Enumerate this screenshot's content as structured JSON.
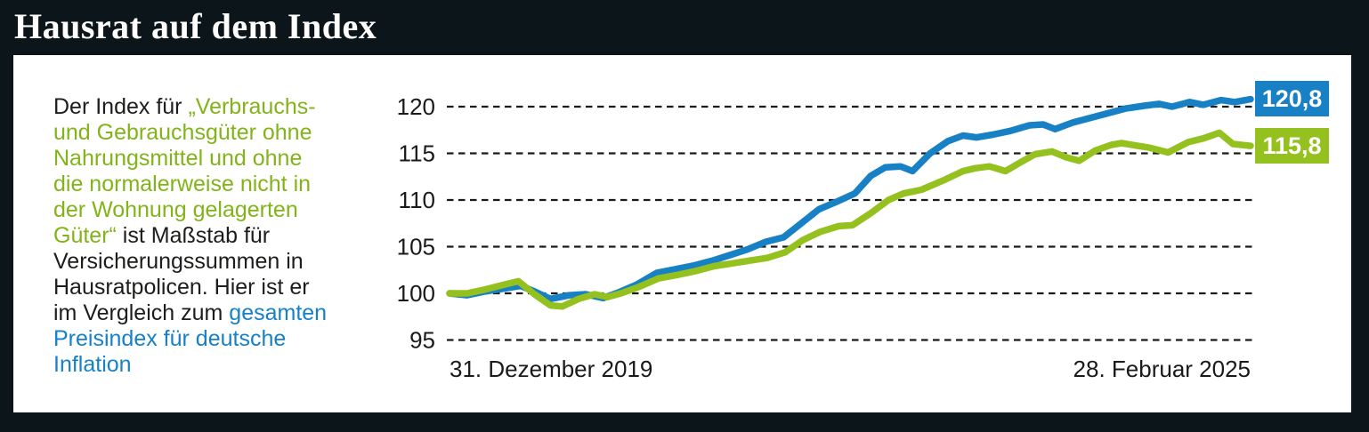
{
  "header": {
    "title": "Hausrat auf dem Index"
  },
  "colors": {
    "k": "#1d1d1b",
    "g": "#82b41a",
    "b": "#1681c8",
    "background_dark": "#0c161a",
    "panel": "#ffffff",
    "grid": "#1a1a1a"
  },
  "description": {
    "lines": [
      [
        {
          "t": "Der Index für ",
          "c": "k"
        },
        {
          "t": "„Verbrauchs-",
          "c": "g"
        }
      ],
      [
        {
          "t": "und Gebrauchsgüter ohne",
          "c": "g"
        }
      ],
      [
        {
          "t": "Nahrungsmittel und ohne",
          "c": "g"
        }
      ],
      [
        {
          "t": "die normalerweise nicht in",
          "c": "g"
        }
      ],
      [
        {
          "t": "der Wohnung gelagerten",
          "c": "g"
        }
      ],
      [
        {
          "t": "Güter“",
          "c": "g"
        },
        {
          "t": " ist Maßstab für",
          "c": "k"
        }
      ],
      [
        {
          "t": "Versicherungssummen in",
          "c": "k"
        }
      ],
      [
        {
          "t": "Hausratpolicen. Hier ist er",
          "c": "k"
        }
      ],
      [
        {
          "t": "im Vergleich zum ",
          "c": "k"
        },
        {
          "t": "gesamten",
          "c": "b"
        }
      ],
      [
        {
          "t": "Preisindex für deutsche",
          "c": "b"
        }
      ],
      [
        {
          "t": "Inflation",
          "c": "b"
        }
      ]
    ]
  },
  "chart_data": {
    "type": "line",
    "title": "Hausrat auf dem Index",
    "x_axis": {
      "start_label": "31. Dezember 2019",
      "end_label": "28. Februar 2025",
      "x_unit": "fraction_of_time_span"
    },
    "y_ticks": [
      120,
      115,
      110,
      105,
      100,
      95
    ],
    "ylim": [
      93.8,
      121.5
    ],
    "grid": "horizontal-dashed",
    "legend": "none (series identified by colored text at left)",
    "series": [
      {
        "name": "gesamter Preisindex für deutsche Inflation",
        "color": "#1880c4",
        "end_label": "120,8",
        "end_value": 120.8,
        "points": [
          [
            0.0,
            100.0
          ],
          [
            0.022,
            99.8
          ],
          [
            0.044,
            100.2
          ],
          [
            0.067,
            100.5
          ],
          [
            0.089,
            100.8
          ],
          [
            0.106,
            100.2
          ],
          [
            0.126,
            99.4
          ],
          [
            0.15,
            99.8
          ],
          [
            0.17,
            99.9
          ],
          [
            0.192,
            99.5
          ],
          [
            0.211,
            100.1
          ],
          [
            0.233,
            100.9
          ],
          [
            0.259,
            102.2
          ],
          [
            0.283,
            102.6
          ],
          [
            0.306,
            103.0
          ],
          [
            0.328,
            103.5
          ],
          [
            0.35,
            104.1
          ],
          [
            0.372,
            104.7
          ],
          [
            0.394,
            105.5
          ],
          [
            0.417,
            106.0
          ],
          [
            0.439,
            107.5
          ],
          [
            0.461,
            109.0
          ],
          [
            0.483,
            109.8
          ],
          [
            0.506,
            110.7
          ],
          [
            0.526,
            112.6
          ],
          [
            0.544,
            113.5
          ],
          [
            0.563,
            113.6
          ],
          [
            0.578,
            113.1
          ],
          [
            0.6,
            115.0
          ],
          [
            0.622,
            116.3
          ],
          [
            0.641,
            116.9
          ],
          [
            0.658,
            116.7
          ],
          [
            0.678,
            117.0
          ],
          [
            0.7,
            117.4
          ],
          [
            0.724,
            118.0
          ],
          [
            0.741,
            118.1
          ],
          [
            0.756,
            117.6
          ],
          [
            0.778,
            118.3
          ],
          [
            0.8,
            118.8
          ],
          [
            0.822,
            119.3
          ],
          [
            0.844,
            119.8
          ],
          [
            0.867,
            120.1
          ],
          [
            0.886,
            120.3
          ],
          [
            0.902,
            120.0
          ],
          [
            0.924,
            120.5
          ],
          [
            0.941,
            120.2
          ],
          [
            0.963,
            120.7
          ],
          [
            0.98,
            120.5
          ],
          [
            1.0,
            120.8
          ]
        ]
      },
      {
        "name": "Index für Verbrauchs- und Gebrauchsgüter ohne Nahrungsmittel und ohne die normalerweise nicht in der Wohnung gelagerten Güter",
        "color": "#95c11f",
        "end_label": "115,8",
        "end_value": 115.8,
        "points": [
          [
            0.0,
            100.0
          ],
          [
            0.022,
            100.0
          ],
          [
            0.044,
            100.4
          ],
          [
            0.067,
            100.9
          ],
          [
            0.086,
            101.3
          ],
          [
            0.106,
            99.9
          ],
          [
            0.126,
            98.7
          ],
          [
            0.141,
            98.6
          ],
          [
            0.161,
            99.4
          ],
          [
            0.181,
            99.9
          ],
          [
            0.197,
            99.6
          ],
          [
            0.214,
            100.0
          ],
          [
            0.237,
            100.7
          ],
          [
            0.261,
            101.6
          ],
          [
            0.286,
            102.0
          ],
          [
            0.308,
            102.4
          ],
          [
            0.33,
            102.9
          ],
          [
            0.352,
            103.2
          ],
          [
            0.374,
            103.5
          ],
          [
            0.397,
            103.8
          ],
          [
            0.419,
            104.4
          ],
          [
            0.441,
            105.7
          ],
          [
            0.463,
            106.6
          ],
          [
            0.486,
            107.2
          ],
          [
            0.503,
            107.3
          ],
          [
            0.526,
            108.6
          ],
          [
            0.548,
            110.0
          ],
          [
            0.567,
            110.7
          ],
          [
            0.589,
            111.1
          ],
          [
            0.619,
            112.2
          ],
          [
            0.641,
            113.1
          ],
          [
            0.656,
            113.4
          ],
          [
            0.674,
            113.6
          ],
          [
            0.694,
            113.1
          ],
          [
            0.714,
            114.1
          ],
          [
            0.731,
            114.9
          ],
          [
            0.752,
            115.2
          ],
          [
            0.769,
            114.6
          ],
          [
            0.786,
            114.2
          ],
          [
            0.806,
            115.3
          ],
          [
            0.826,
            115.9
          ],
          [
            0.839,
            116.1
          ],
          [
            0.859,
            115.8
          ],
          [
            0.874,
            115.6
          ],
          [
            0.897,
            115.1
          ],
          [
            0.922,
            116.2
          ],
          [
            0.941,
            116.6
          ],
          [
            0.961,
            117.2
          ],
          [
            0.978,
            116.0
          ],
          [
            1.0,
            115.8
          ]
        ]
      }
    ]
  }
}
